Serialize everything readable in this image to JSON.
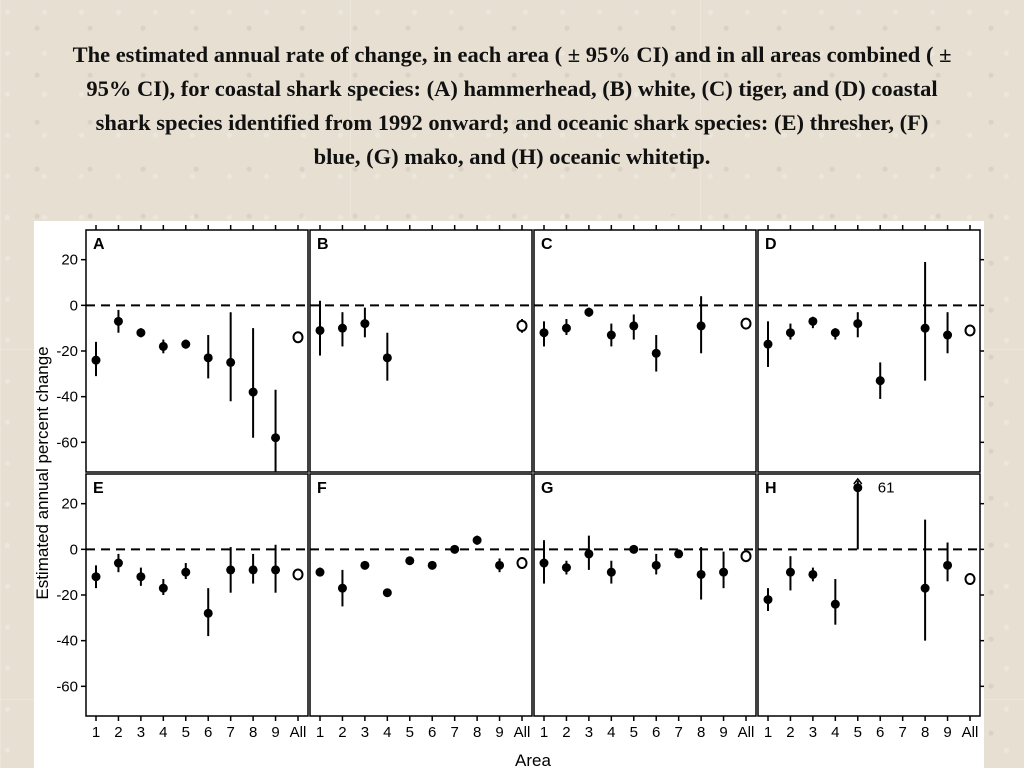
{
  "slide": {
    "title": "The estimated annual rate of change, in each area ( ± 95% CI) and in all areas combined ( ± 95% CI), for coastal shark species: (A) hammerhead, (B) white, (C) tiger, and (D) coastal shark species identified from 1992 onward; and oceanic shark species: (E) thresher, (F) blue, (G) mako, and (H) oceanic whitetip."
  },
  "chart_data": {
    "type": "scatter",
    "style": "point estimates with 95% CI error bars, 2x4 panel grid, dashed reference line at 0, open circle for 'All' combined estimate",
    "ylabel": "Estimated annual percent change",
    "xlabel": "Area",
    "ylim": [
      -73,
      33
    ],
    "yticks": [
      20,
      0,
      -20,
      -40,
      -60
    ],
    "categories": [
      "1",
      "2",
      "3",
      "4",
      "5",
      "6",
      "7",
      "8",
      "9",
      "All"
    ],
    "reference_line": 0,
    "colors": {
      "marks": "#000000",
      "background": "#ffffff"
    },
    "panels": [
      {
        "label": "A",
        "points": [
          {
            "x": "1",
            "y": -24,
            "lo": -31,
            "hi": -16
          },
          {
            "x": "2",
            "y": -7,
            "lo": -12,
            "hi": -2
          },
          {
            "x": "3",
            "y": -12,
            "lo": -14,
            "hi": -10
          },
          {
            "x": "4",
            "y": -18,
            "lo": -21,
            "hi": -15
          },
          {
            "x": "5",
            "y": -17,
            "lo": -19,
            "hi": -15
          },
          {
            "x": "6",
            "y": -23,
            "lo": -32,
            "hi": -13
          },
          {
            "x": "7",
            "y": -25,
            "lo": -42,
            "hi": -3
          },
          {
            "x": "8",
            "y": -38,
            "lo": -58,
            "hi": -10
          },
          {
            "x": "9",
            "y": -58,
            "lo": -73,
            "hi": -37
          },
          {
            "x": "All",
            "y": -14,
            "lo": -16,
            "hi": -12,
            "combined": true
          }
        ]
      },
      {
        "label": "B",
        "points": [
          {
            "x": "1",
            "y": -11,
            "lo": -22,
            "hi": 2
          },
          {
            "x": "2",
            "y": -10,
            "lo": -18,
            "hi": -3
          },
          {
            "x": "3",
            "y": -8,
            "lo": -14,
            "hi": -1
          },
          {
            "x": "4",
            "y": -23,
            "lo": -33,
            "hi": -12
          },
          {
            "x": "All",
            "y": -9,
            "lo": -12,
            "hi": -6,
            "combined": true
          }
        ]
      },
      {
        "label": "C",
        "points": [
          {
            "x": "1",
            "y": -12,
            "lo": -18,
            "hi": -7
          },
          {
            "x": "2",
            "y": -10,
            "lo": -13,
            "hi": -6
          },
          {
            "x": "3",
            "y": -3,
            "lo": -5,
            "hi": -1
          },
          {
            "x": "4",
            "y": -13,
            "lo": -18,
            "hi": -8
          },
          {
            "x": "5",
            "y": -9,
            "lo": -15,
            "hi": -4
          },
          {
            "x": "6",
            "y": -21,
            "lo": -29,
            "hi": -13
          },
          {
            "x": "8",
            "y": -9,
            "lo": -21,
            "hi": 4
          },
          {
            "x": "All",
            "y": -8,
            "lo": -9,
            "hi": -6,
            "combined": true
          }
        ]
      },
      {
        "label": "D",
        "points": [
          {
            "x": "1",
            "y": -17,
            "lo": -27,
            "hi": -7
          },
          {
            "x": "2",
            "y": -12,
            "lo": -15,
            "hi": -8
          },
          {
            "x": "3",
            "y": -7,
            "lo": -10,
            "hi": -5
          },
          {
            "x": "4",
            "y": -12,
            "lo": -15,
            "hi": -10
          },
          {
            "x": "5",
            "y": -8,
            "lo": -14,
            "hi": -3
          },
          {
            "x": "6",
            "y": -33,
            "lo": -41,
            "hi": -25
          },
          {
            "x": "8",
            "y": -10,
            "lo": -33,
            "hi": 19
          },
          {
            "x": "9",
            "y": -13,
            "lo": -21,
            "hi": -3
          },
          {
            "x": "All",
            "y": -11,
            "lo": -13,
            "hi": -9,
            "combined": true
          }
        ]
      },
      {
        "label": "E",
        "points": [
          {
            "x": "1",
            "y": -12,
            "lo": -17,
            "hi": -7
          },
          {
            "x": "2",
            "y": -6,
            "lo": -10,
            "hi": -2
          },
          {
            "x": "3",
            "y": -12,
            "lo": -16,
            "hi": -8
          },
          {
            "x": "4",
            "y": -17,
            "lo": -20,
            "hi": -13
          },
          {
            "x": "5",
            "y": -10,
            "lo": -13,
            "hi": -6
          },
          {
            "x": "6",
            "y": -28,
            "lo": -38,
            "hi": -17
          },
          {
            "x": "7",
            "y": -9,
            "lo": -19,
            "hi": 1
          },
          {
            "x": "8",
            "y": -9,
            "lo": -15,
            "hi": -2
          },
          {
            "x": "9",
            "y": -9,
            "lo": -19,
            "hi": 2
          },
          {
            "x": "All",
            "y": -11,
            "lo": -13,
            "hi": -9,
            "combined": true
          }
        ]
      },
      {
        "label": "F",
        "points": [
          {
            "x": "1",
            "y": -10,
            "lo": -11,
            "hi": -8
          },
          {
            "x": "2",
            "y": -17,
            "lo": -25,
            "hi": -9
          },
          {
            "x": "3",
            "y": -7,
            "lo": -8,
            "hi": -6
          },
          {
            "x": "4",
            "y": -19,
            "lo": -20,
            "hi": -18
          },
          {
            "x": "5",
            "y": -5,
            "lo": -6,
            "hi": -4
          },
          {
            "x": "6",
            "y": -7,
            "lo": -8,
            "hi": -6
          },
          {
            "x": "7",
            "y": 0,
            "lo": -1,
            "hi": 1
          },
          {
            "x": "8",
            "y": 4,
            "lo": 2,
            "hi": 6
          },
          {
            "x": "9",
            "y": -7,
            "lo": -10,
            "hi": -4
          },
          {
            "x": "All",
            "y": -6,
            "lo": -7,
            "hi": -5,
            "combined": true
          }
        ]
      },
      {
        "label": "G",
        "points": [
          {
            "x": "1",
            "y": -6,
            "lo": -15,
            "hi": 4
          },
          {
            "x": "2",
            "y": -8,
            "lo": -11,
            "hi": -5
          },
          {
            "x": "3",
            "y": -2,
            "lo": -9,
            "hi": 6
          },
          {
            "x": "4",
            "y": -10,
            "lo": -15,
            "hi": -5
          },
          {
            "x": "5",
            "y": 0,
            "lo": -1,
            "hi": 1
          },
          {
            "x": "6",
            "y": -7,
            "lo": -11,
            "hi": -2
          },
          {
            "x": "7",
            "y": -2,
            "lo": -3,
            "hi": -1
          },
          {
            "x": "8",
            "y": -11,
            "lo": -22,
            "hi": 1
          },
          {
            "x": "9",
            "y": -10,
            "lo": -17,
            "hi": -1
          },
          {
            "x": "All",
            "y": -3,
            "lo": -5,
            "hi": -2,
            "combined": true
          }
        ]
      },
      {
        "label": "H",
        "points": [
          {
            "x": "1",
            "y": -22,
            "lo": -27,
            "hi": -17
          },
          {
            "x": "2",
            "y": -10,
            "lo": -18,
            "hi": -3
          },
          {
            "x": "3",
            "y": -11,
            "lo": -14,
            "hi": -8
          },
          {
            "x": "4",
            "y": -24,
            "lo": -33,
            "hi": -13
          },
          {
            "x": "5",
            "y": 27,
            "lo": 0,
            "hi": 30,
            "offscale_value": 61,
            "annotation": "61"
          },
          {
            "x": "8",
            "y": -17,
            "lo": -40,
            "hi": 13
          },
          {
            "x": "9",
            "y": -7,
            "lo": -14,
            "hi": 3
          },
          {
            "x": "All",
            "y": -13,
            "lo": -15,
            "hi": -11,
            "combined": true
          }
        ]
      }
    ]
  }
}
